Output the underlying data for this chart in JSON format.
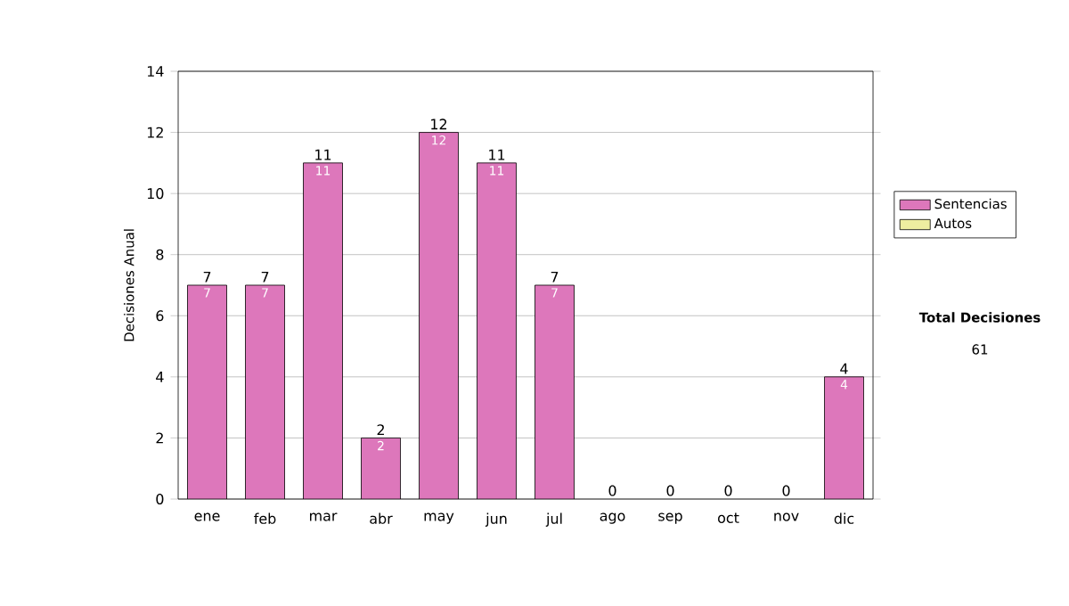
{
  "chart_data": {
    "type": "bar",
    "stacked": true,
    "ylabel": "Decisiones Anual",
    "categories": [
      "ene",
      "feb",
      "mar",
      "abr",
      "may",
      "jun",
      "jul",
      "ago",
      "sep",
      "oct",
      "nov",
      "dic"
    ],
    "series": [
      {
        "name": "Sentencias",
        "color": "#dd77bb",
        "values": [
          7,
          7,
          11,
          2,
          12,
          11,
          7,
          0,
          0,
          0,
          0,
          4
        ],
        "value_labels": [
          "7",
          "7",
          "11",
          "2",
          "12",
          "11",
          "7",
          null,
          null,
          null,
          null,
          "4"
        ]
      },
      {
        "name": "Autos",
        "color": "#eeeea0",
        "values": [
          0,
          0,
          0,
          0,
          0,
          0,
          0,
          0,
          0,
          0,
          0,
          0
        ]
      }
    ],
    "totals": [
      "7",
      "7",
      "11",
      "2",
      "12",
      "11",
      "7",
      "0",
      "0",
      "0",
      "0",
      "4"
    ],
    "ylim": [
      0,
      14
    ],
    "yticks": [
      0,
      2,
      4,
      6,
      8,
      10,
      12,
      14
    ],
    "grid": "y",
    "legend": "right",
    "annotations": [
      "Total Decisiones",
      "61"
    ]
  }
}
